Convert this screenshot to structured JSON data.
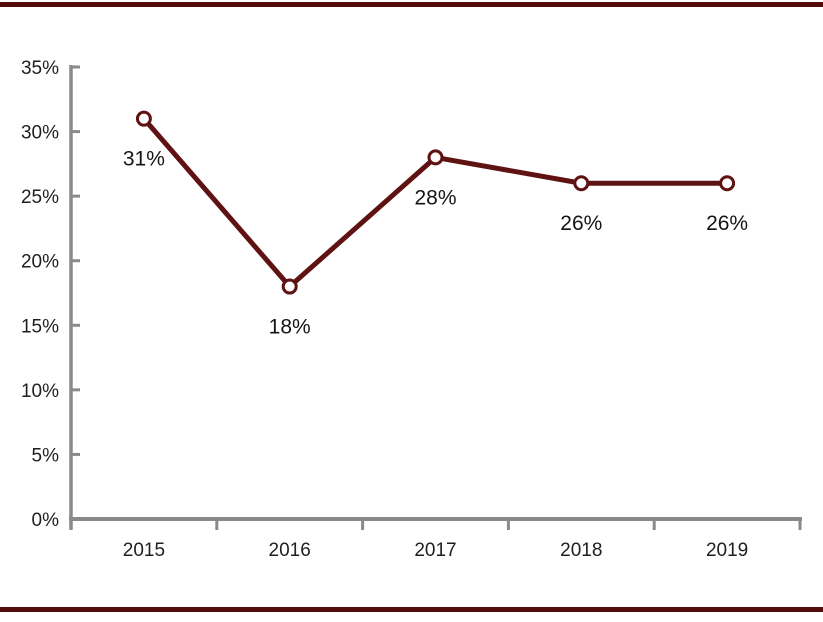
{
  "page": {
    "background": "#ffffff",
    "border_color": "#530c0b"
  },
  "chart_data": {
    "type": "line",
    "title": "",
    "xlabel": "",
    "ylabel": "",
    "categories": [
      "2015",
      "2016",
      "2017",
      "2018",
      "2019"
    ],
    "series": [
      {
        "name": "",
        "values": [
          31,
          18,
          28,
          26,
          26
        ]
      }
    ],
    "data_labels": [
      "31%",
      "18%",
      "28%",
      "26%",
      "26%"
    ],
    "ylim": [
      0,
      35
    ],
    "ytick_step": 5,
    "ytick_labels": [
      "0%",
      "5%",
      "10%",
      "15%",
      "20%",
      "25%",
      "30%",
      "35%"
    ],
    "grid": false,
    "legend_position": "none",
    "data_label_position": "below",
    "colors": {
      "line": "#5e1312",
      "marker_fill": "#ffffff",
      "marker_stroke": "#5e1312",
      "axis": "#8a8a8a",
      "tick_label": "#1f1f1f",
      "data_label": "#151515"
    }
  }
}
